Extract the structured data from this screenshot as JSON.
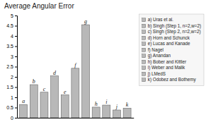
{
  "chart_data": {
    "type": "bar",
    "title": "Average Angular Error",
    "categories": [
      "a",
      "b",
      "c",
      "d",
      "e",
      "f",
      "g",
      "h",
      "i",
      "j",
      "k"
    ],
    "values": [
      0.65,
      1.62,
      1.25,
      2.05,
      1.12,
      2.42,
      4.55,
      0.52,
      0.62,
      0.38,
      0.47
    ],
    "color": "#b8b8b8",
    "ylim": [
      0,
      5
    ],
    "yticks": [
      0,
      0.5,
      1,
      1.5,
      2,
      2.5,
      3,
      3.5,
      4,
      4.5,
      5
    ],
    "legend_entries": [
      "a) Uras et al.",
      "b) Singh (Step 1, n=2,w=2)",
      "c) Singh (Step 2, n=2,w=2)",
      "d) Horn and Schunck",
      "e) Lucas and Kanade",
      "f) Nagel",
      "g) Anandan",
      "h) Bober and Kittler",
      "i) Weber and Malik",
      "j) LMedS",
      "k) Odobez and Bothemy"
    ],
    "legend": "right",
    "tick_labels": "y",
    "grid": false
  }
}
